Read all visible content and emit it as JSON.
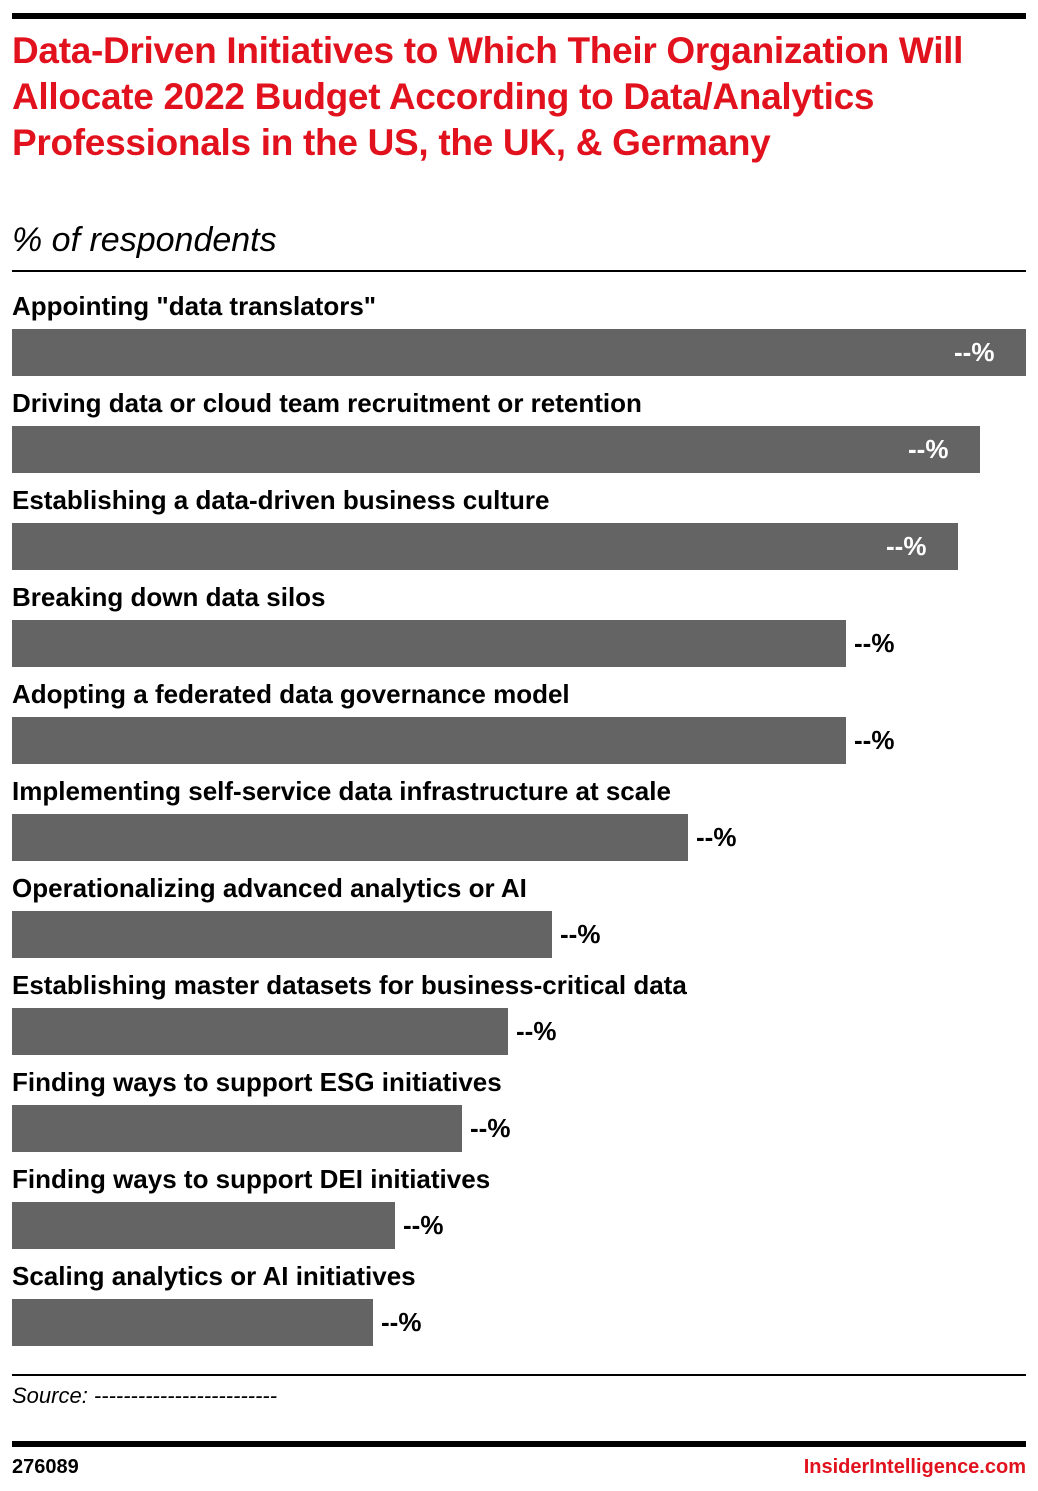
{
  "colors": {
    "title": "#e1121d",
    "bar": "#646464",
    "label_inside": "#ffffff",
    "label_outside": "#000000",
    "brand": "#e1121d"
  },
  "header": {
    "title": "Data-Driven Initiatives to Which Their Organization Will Allocate 2022 Budget According to Data/Analytics Professionals in the US, the UK, & Germany",
    "subtitle": "% of respondents"
  },
  "chart_data": {
    "type": "bar",
    "orientation": "horizontal",
    "title": "Data-Driven Initiatives to Which Their Organization Will Allocate 2022 Budget According to Data/Analytics Professionals in the US, the UK, & Germany",
    "subtitle": "% of respondents",
    "xlabel": "",
    "ylabel": "",
    "grid": false,
    "categories": [
      "Appointing \"data translators\"",
      "Driving data or cloud team recruitment or retention",
      "Establishing a data-driven business culture",
      "Breaking down data silos",
      "Adopting a federated data governance model",
      "Implementing self-service data infrastructure at scale",
      "Operationalizing advanced analytics or AI",
      "Establishing master datasets for business-critical data",
      "Finding ways to support ESG initiatives",
      "Finding ways to support DEI initiatives",
      "Scaling analytics or AI initiatives"
    ],
    "values": [
      100,
      95.5,
      93.3,
      82.2,
      82.2,
      66.7,
      53.3,
      48.9,
      44.4,
      37.8,
      35.6
    ],
    "value_labels": [
      "--%",
      "--%",
      "--%",
      "--%",
      "--%",
      "--%",
      "--%",
      "--%",
      "--%",
      "--%",
      "--%"
    ],
    "xlim": [
      0,
      100
    ]
  },
  "footer": {
    "source": "Source: -------------------------",
    "chart_id": "276089",
    "brand": "InsiderIntelligence.com"
  }
}
